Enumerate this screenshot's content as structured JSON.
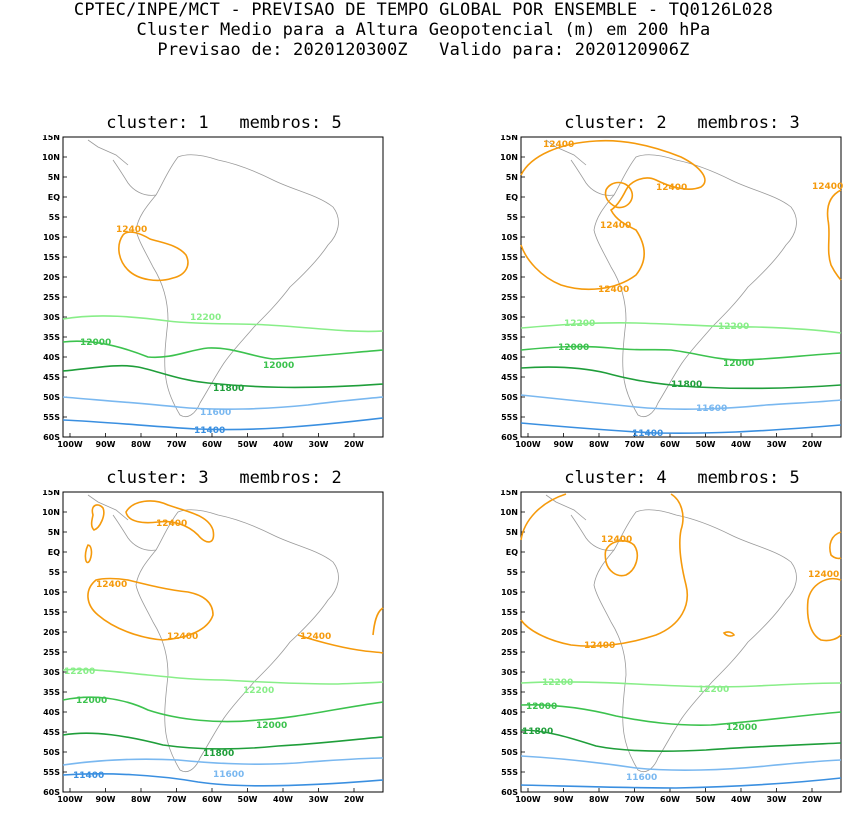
{
  "header": {
    "line1": "CPTEC/INPE/MCT - PREVISAO DE TEMPO GLOBAL POR ENSEMBLE - TQ0126L028",
    "line2": "Cluster Medio para a Altura Geopotencial (m) em 200 hPa",
    "line3": "Previsao de: 2020120300Z   Valido para: 2020120906Z"
  },
  "axis": {
    "lat_ticks": [
      "15N",
      "10N",
      "5N",
      "EQ",
      "5S",
      "10S",
      "15S",
      "20S",
      "25S",
      "30S",
      "35S",
      "40S",
      "45S",
      "50S",
      "55S",
      "60S"
    ],
    "lon_ticks": [
      "100W",
      "90W",
      "80W",
      "70W",
      "60W",
      "50W",
      "40W",
      "30W",
      "20W"
    ]
  },
  "colors": {
    "c11400": "#3a8fe0",
    "c11600": "#7ab8f0",
    "c11800": "#1f9e3a",
    "c12000": "#3cc24e",
    "c12200": "#88ee88",
    "c12400": "#f59a0c",
    "land": "#9a9a9a"
  },
  "panels": [
    {
      "title": "cluster: 1   membros: 5",
      "labels": {
        "l12400": "12400",
        "l12200": "12200",
        "l12000a": "12000",
        "l12000b": "12000",
        "l11800": "11800",
        "l11600": "11600",
        "l11400": "11400"
      }
    },
    {
      "title": "cluster: 2   membros: 3",
      "labels": {
        "l12400a": "12400",
        "l12400b": "12400",
        "l12400c": "12400",
        "l12400d": "12400",
        "l12400e": "12400",
        "l12200a": "12200",
        "l12200b": "12200",
        "l12000a": "12000",
        "l12000b": "12000",
        "l11800": "11800",
        "l11600": "11600",
        "l11400": "11400"
      }
    },
    {
      "title": "cluster: 3   membros: 2",
      "labels": {
        "l12400a": "12400",
        "l12400b": "12400",
        "l12400c": "12400",
        "l12400d": "12400",
        "l12200a": "12200",
        "l12200b": "12200",
        "l12000a": "12000",
        "l12000b": "12000",
        "l11800": "11800",
        "l11600": "11600",
        "l11400": "11400"
      }
    },
    {
      "title": "cluster: 4   membros: 5",
      "labels": {
        "l12400a": "12400",
        "l12400b": "12400",
        "l12400c": "12400",
        "l12200a": "12200",
        "l12200b": "12200",
        "l12000a": "12000",
        "l12000b": "12000",
        "l11800": "11800",
        "l11600": "11600"
      }
    }
  ]
}
